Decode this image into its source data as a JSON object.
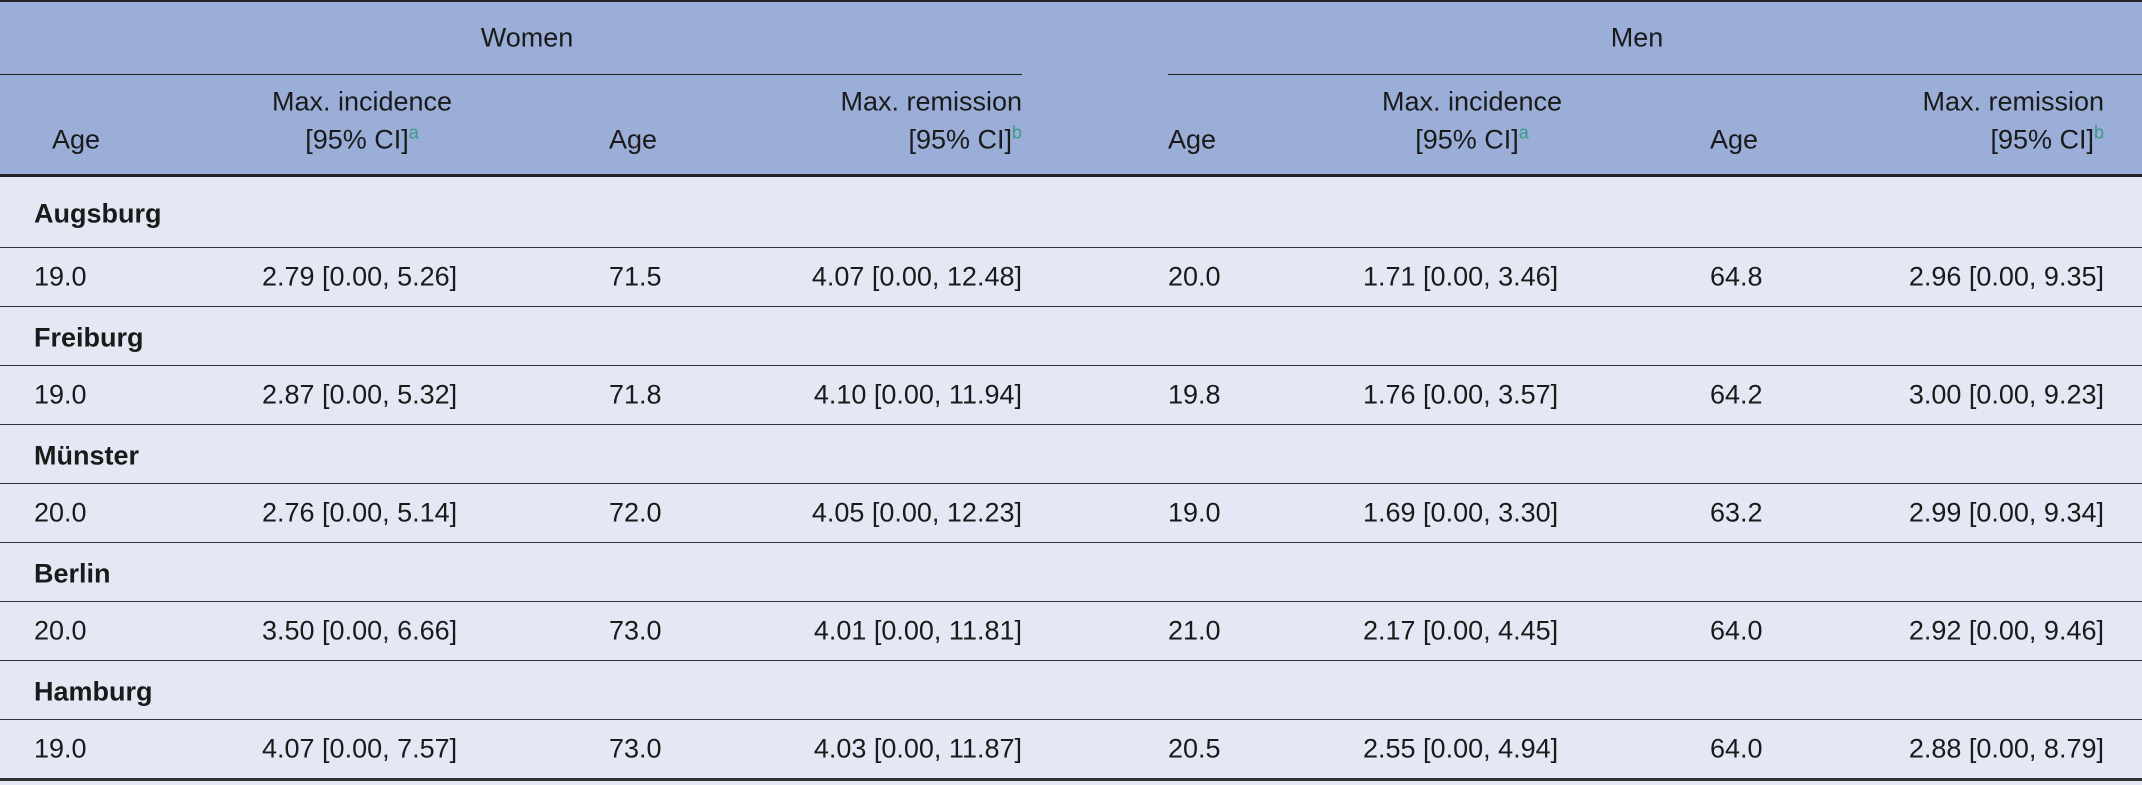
{
  "header": {
    "groups": [
      "Women",
      "Men"
    ],
    "columns": [
      {
        "lines": [
          "Age"
        ]
      },
      {
        "lines": [
          "Max. incidence",
          "[95% CI]"
        ],
        "note": "a"
      },
      {
        "lines": [
          "Age"
        ]
      },
      {
        "lines": [
          "Max. remission",
          "[95% CI]"
        ],
        "note": "b"
      },
      {
        "lines": [
          "Age"
        ]
      },
      {
        "lines": [
          "Max. incidence",
          "[95% CI]"
        ],
        "note": "a"
      },
      {
        "lines": [
          "Age"
        ]
      },
      {
        "lines": [
          "Max. remission",
          "[95% CI]"
        ],
        "note": "b"
      }
    ]
  },
  "sections": [
    {
      "name": "Augsburg",
      "row": [
        "19.0",
        "2.79 [0.00, 5.26]",
        "71.5",
        "4.07 [0.00, 12.48]",
        "20.0",
        "1.71 [0.00, 3.46]",
        "64.8",
        "2.96 [0.00, 9.35]"
      ]
    },
    {
      "name": "Freiburg",
      "row": [
        "19.0",
        "2.87 [0.00, 5.32]",
        "71.8",
        "4.10 [0.00, 11.94]",
        "19.8",
        "1.76 [0.00, 3.57]",
        "64.2",
        "3.00 [0.00, 9.23]"
      ]
    },
    {
      "name": "Münster",
      "row": [
        "20.0",
        "2.76 [0.00, 5.14]",
        "72.0",
        "4.05 [0.00, 12.23]",
        "19.0",
        "1.69 [0.00, 3.30]",
        "63.2",
        "2.99 [0.00, 9.34]"
      ]
    },
    {
      "name": "Berlin",
      "row": [
        "20.0",
        "3.50 [0.00, 6.66]",
        "73.0",
        "4.01 [0.00, 11.81]",
        "21.0",
        "2.17 [0.00, 4.45]",
        "64.0",
        "2.92 [0.00, 9.46]"
      ]
    },
    {
      "name": "Hamburg",
      "row": [
        "19.0",
        "4.07 [0.00, 7.57]",
        "73.0",
        "4.03 [0.00, 11.87]",
        "20.5",
        "2.55 [0.00, 4.94]",
        "64.0",
        "2.88 [0.00, 8.79]"
      ]
    }
  ]
}
